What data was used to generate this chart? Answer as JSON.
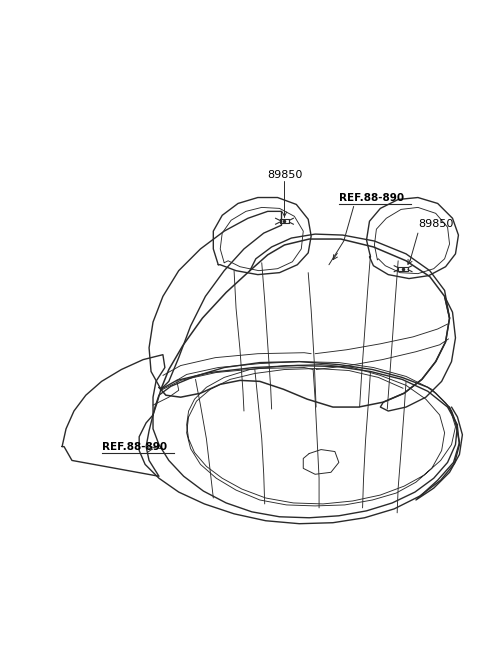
{
  "background_color": "#ffffff",
  "line_color": "#2a2a2a",
  "label_color": "#000000",
  "ref_color": "#000000",
  "figsize": [
    4.8,
    6.55
  ],
  "dpi": 100
}
